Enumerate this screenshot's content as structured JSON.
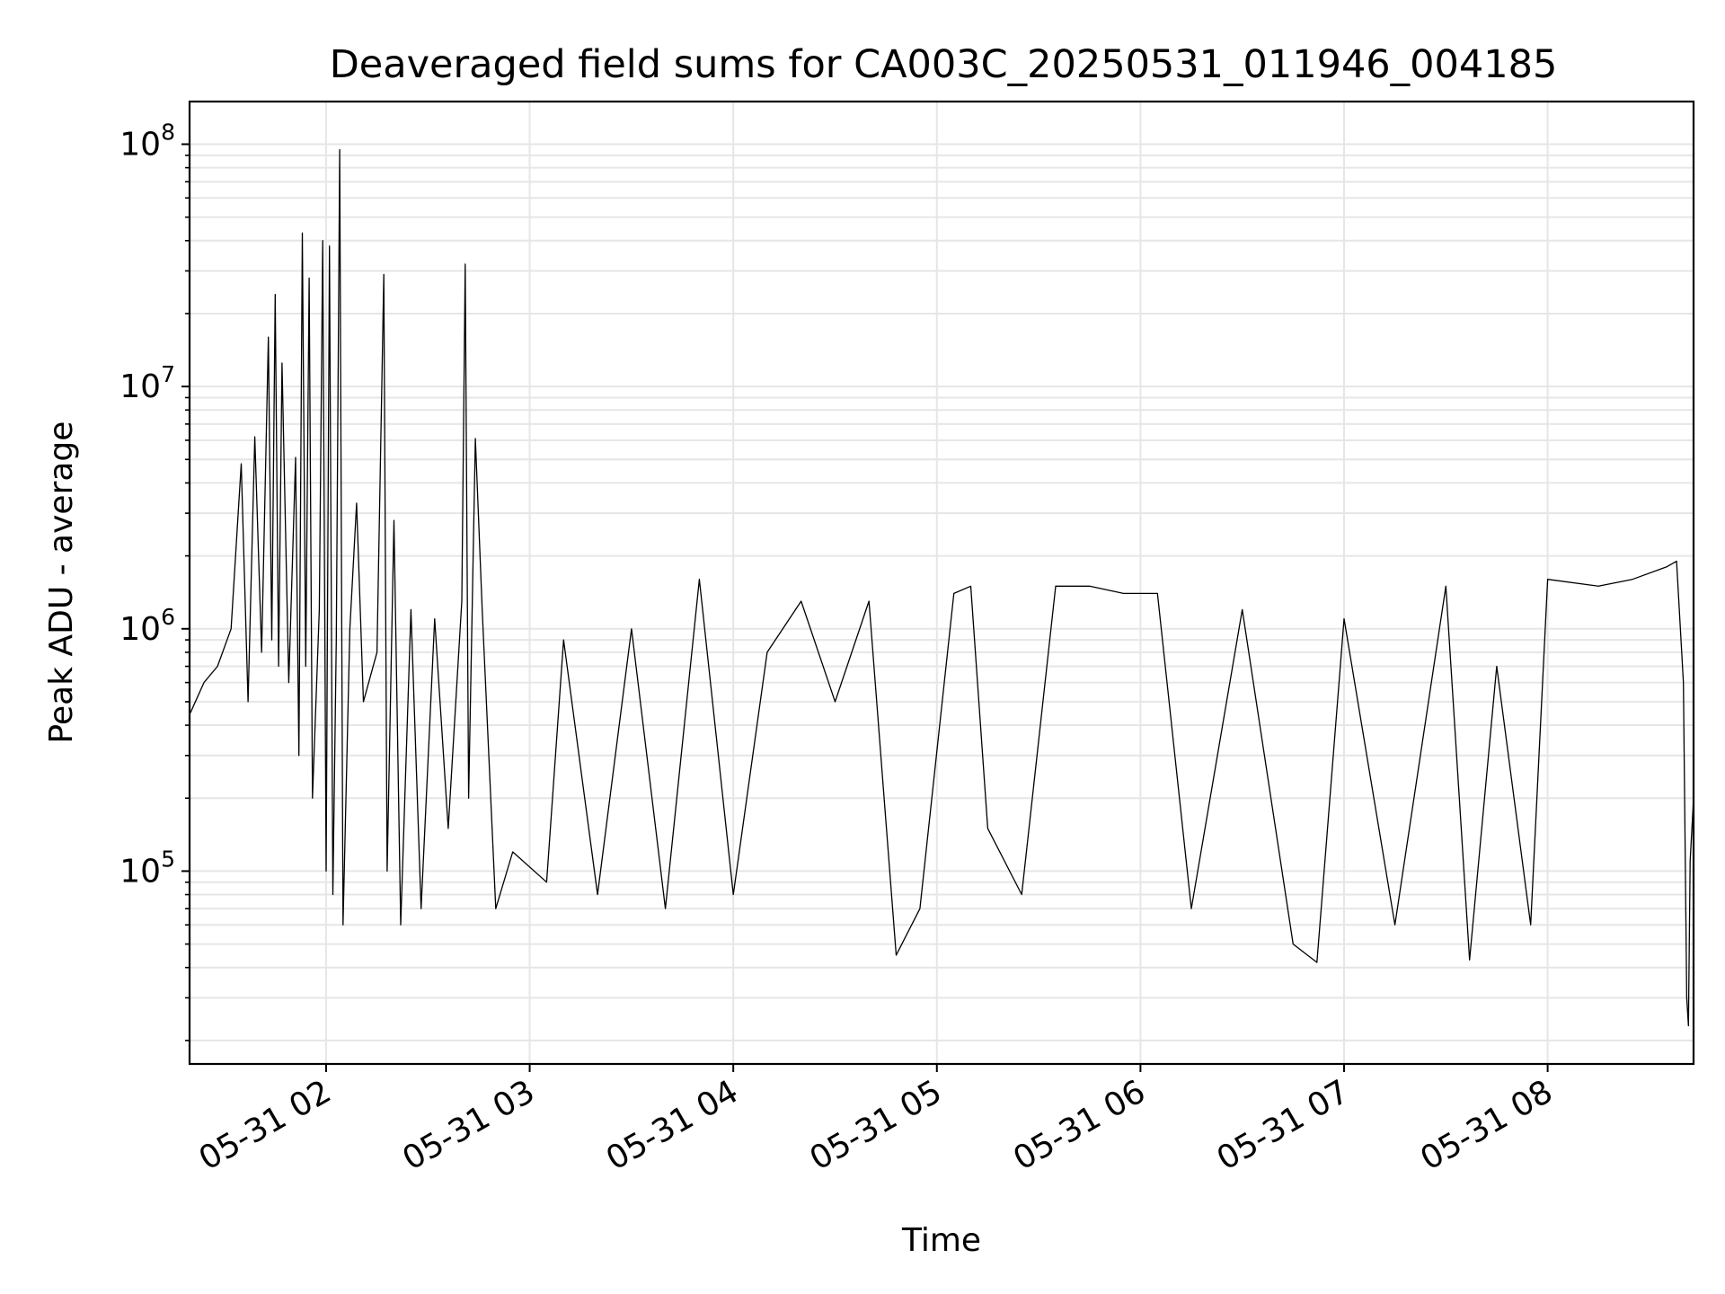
{
  "chart_data": {
    "type": "line",
    "title": "Deaveraged field sums for CA003C_20250531_011946_004185",
    "xlabel": "Time",
    "ylabel": "Peak ADU - average",
    "yscale": "log",
    "ylim": [
      16000,
      150000000
    ],
    "xlim": [
      "2025-05-31T01:19:46",
      "2025-05-31T08:43:00"
    ],
    "grid": true,
    "legend": "none",
    "line_color": "#000000",
    "x_ticks": [
      {
        "value": "2025-05-31T02:00:00",
        "label": "05-31 02"
      },
      {
        "value": "2025-05-31T03:00:00",
        "label": "05-31 03"
      },
      {
        "value": "2025-05-31T04:00:00",
        "label": "05-31 04"
      },
      {
        "value": "2025-05-31T05:00:00",
        "label": "05-31 05"
      },
      {
        "value": "2025-05-31T06:00:00",
        "label": "05-31 06"
      },
      {
        "value": "2025-05-31T07:00:00",
        "label": "05-31 07"
      },
      {
        "value": "2025-05-31T08:00:00",
        "label": "05-31 08"
      }
    ],
    "y_ticks": [
      {
        "value": 100000,
        "base": "10",
        "exp": "5"
      },
      {
        "value": 1000000,
        "base": "10",
        "exp": "6"
      },
      {
        "value": 10000000,
        "base": "10",
        "exp": "7"
      },
      {
        "value": 100000000,
        "base": "10",
        "exp": "8"
      }
    ],
    "series": [
      {
        "values": [
          [
            "2025-05-31T01:20:00",
            450000
          ],
          [
            "2025-05-31T01:24:00",
            600000
          ],
          [
            "2025-05-31T01:28:00",
            700000
          ],
          [
            "2025-05-31T01:32:00",
            1000000
          ],
          [
            "2025-05-31T01:35:00",
            4800000
          ],
          [
            "2025-05-31T01:37:00",
            500000
          ],
          [
            "2025-05-31T01:39:00",
            6200000
          ],
          [
            "2025-05-31T01:41:00",
            800000
          ],
          [
            "2025-05-31T01:43:00",
            16000000
          ],
          [
            "2025-05-31T01:44:00",
            900000
          ],
          [
            "2025-05-31T01:45:00",
            24000000
          ],
          [
            "2025-05-31T01:46:00",
            700000
          ],
          [
            "2025-05-31T01:47:00",
            12500000
          ],
          [
            "2025-05-31T01:49:00",
            600000
          ],
          [
            "2025-05-31T01:51:00",
            5100000
          ],
          [
            "2025-05-31T01:52:00",
            300000
          ],
          [
            "2025-05-31T01:53:00",
            43000000
          ],
          [
            "2025-05-31T01:54:00",
            700000
          ],
          [
            "2025-05-31T01:55:00",
            28000000
          ],
          [
            "2025-05-31T01:56:00",
            200000
          ],
          [
            "2025-05-31T01:58:00",
            1200000
          ],
          [
            "2025-05-31T01:59:00",
            40000000
          ],
          [
            "2025-05-31T02:00:00",
            100000
          ],
          [
            "2025-05-31T02:01:00",
            38000000
          ],
          [
            "2025-05-31T02:02:00",
            80000
          ],
          [
            "2025-05-31T02:03:00",
            900000
          ],
          [
            "2025-05-31T02:04:00",
            95000000
          ],
          [
            "2025-05-31T02:05:00",
            60000
          ],
          [
            "2025-05-31T02:07:00",
            1000000
          ],
          [
            "2025-05-31T02:09:00",
            3300000
          ],
          [
            "2025-05-31T02:11:00",
            500000
          ],
          [
            "2025-05-31T02:15:00",
            800000
          ],
          [
            "2025-05-31T02:17:00",
            29000000
          ],
          [
            "2025-05-31T02:18:00",
            100000
          ],
          [
            "2025-05-31T02:20:00",
            2800000
          ],
          [
            "2025-05-31T02:22:00",
            60000
          ],
          [
            "2025-05-31T02:25:00",
            1200000
          ],
          [
            "2025-05-31T02:28:00",
            70000
          ],
          [
            "2025-05-31T02:32:00",
            1100000
          ],
          [
            "2025-05-31T02:36:00",
            150000
          ],
          [
            "2025-05-31T02:40:00",
            1300000
          ],
          [
            "2025-05-31T02:41:00",
            32000000
          ],
          [
            "2025-05-31T02:42:00",
            200000
          ],
          [
            "2025-05-31T02:44:00",
            6100000
          ],
          [
            "2025-05-31T02:46:00",
            1200000
          ],
          [
            "2025-05-31T02:50:00",
            70000
          ],
          [
            "2025-05-31T02:55:00",
            120000
          ],
          [
            "2025-05-31T03:05:00",
            90000
          ],
          [
            "2025-05-31T03:10:00",
            900000
          ],
          [
            "2025-05-31T03:20:00",
            80000
          ],
          [
            "2025-05-31T03:30:00",
            1000000
          ],
          [
            "2025-05-31T03:40:00",
            70000
          ],
          [
            "2025-05-31T03:50:00",
            1600000
          ],
          [
            "2025-05-31T04:00:00",
            80000
          ],
          [
            "2025-05-31T04:10:00",
            800000
          ],
          [
            "2025-05-31T04:20:00",
            1300000
          ],
          [
            "2025-05-31T04:30:00",
            500000
          ],
          [
            "2025-05-31T04:40:00",
            1300000
          ],
          [
            "2025-05-31T04:48:00",
            45000
          ],
          [
            "2025-05-31T04:55:00",
            70000
          ],
          [
            "2025-05-31T05:05:00",
            1400000
          ],
          [
            "2025-05-31T05:10:00",
            1500000
          ],
          [
            "2025-05-31T05:15:00",
            150000
          ],
          [
            "2025-05-31T05:25:00",
            80000
          ],
          [
            "2025-05-31T05:35:00",
            1500000
          ],
          [
            "2025-05-31T05:45:00",
            1500000
          ],
          [
            "2025-05-31T05:55:00",
            1400000
          ],
          [
            "2025-05-31T06:05:00",
            1400000
          ],
          [
            "2025-05-31T06:15:00",
            70000
          ],
          [
            "2025-05-31T06:30:00",
            1200000
          ],
          [
            "2025-05-31T06:45:00",
            50000
          ],
          [
            "2025-05-31T06:52:00",
            42000
          ],
          [
            "2025-05-31T07:00:00",
            1100000
          ],
          [
            "2025-05-31T07:15:00",
            60000
          ],
          [
            "2025-05-31T07:30:00",
            1500000
          ],
          [
            "2025-05-31T07:37:00",
            43000
          ],
          [
            "2025-05-31T07:45:00",
            700000
          ],
          [
            "2025-05-31T07:55:00",
            60000
          ],
          [
            "2025-05-31T08:00:00",
            1600000
          ],
          [
            "2025-05-31T08:15:00",
            1500000
          ],
          [
            "2025-05-31T08:25:00",
            1600000
          ],
          [
            "2025-05-31T08:35:00",
            1800000
          ],
          [
            "2025-05-31T08:38:00",
            1900000
          ],
          [
            "2025-05-31T08:40:00",
            600000
          ],
          [
            "2025-05-31T08:41:00",
            30000
          ],
          [
            "2025-05-31T08:41:30",
            23000
          ],
          [
            "2025-05-31T08:42:00",
            110000
          ],
          [
            "2025-05-31T08:43:00",
            200000
          ]
        ]
      }
    ]
  }
}
